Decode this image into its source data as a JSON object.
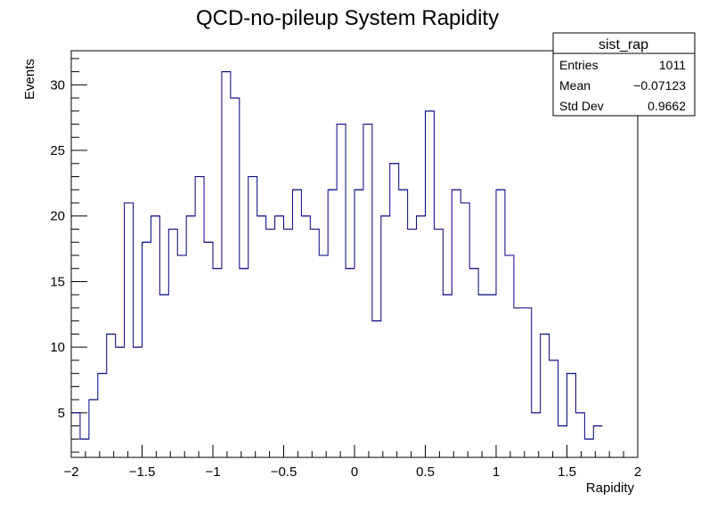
{
  "chart_data": {
    "type": "histogram",
    "title": "QCD-no-pileup System Rapidity",
    "xlabel": "Rapidity",
    "ylabel": "Events",
    "xlim": [
      -2,
      2
    ],
    "ylim": [
      1.6,
      32.6
    ],
    "x_ticks": [
      -2,
      -1.5,
      -1,
      -0.5,
      0,
      0.5,
      1,
      1.5,
      2
    ],
    "x_tick_labels": [
      "−2",
      "−1.5",
      "−1",
      "−0.5",
      "0",
      "0.5",
      "1",
      "1.5",
      "2"
    ],
    "y_ticks": [
      5,
      10,
      15,
      20,
      25,
      30
    ],
    "y_tick_labels": [
      "5",
      "10",
      "15",
      "20",
      "25",
      "30"
    ],
    "line_color": "#000080",
    "bin_edges_start": -2,
    "bin_width": 0.0625,
    "values": [
      5,
      3,
      6,
      8,
      11,
      10,
      21,
      10,
      18,
      20,
      14,
      19,
      17,
      20,
      23,
      18,
      16,
      31,
      29,
      16,
      23,
      20,
      19,
      20,
      19,
      22,
      20,
      19,
      17,
      22,
      27,
      16,
      22,
      27,
      12,
      20,
      24,
      22,
      19,
      20,
      28,
      19,
      14,
      22,
      21,
      16,
      14,
      14,
      22,
      17,
      13,
      13,
      5,
      11,
      9,
      4,
      8,
      5,
      3,
      4
    ]
  },
  "stats_box": {
    "name": "sist_rap",
    "rows": [
      {
        "label": "Entries",
        "value": "1011"
      },
      {
        "label": "Mean",
        "value": "−0.07123"
      },
      {
        "label": "Std Dev",
        "value": "0.9662"
      }
    ]
  }
}
